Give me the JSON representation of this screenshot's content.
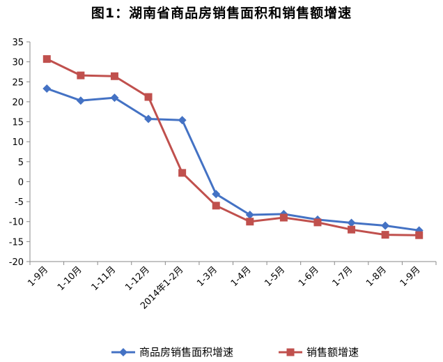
{
  "title": "图1：湖南省商品房销售面积和销售额增速",
  "chart_data": {
    "type": "line",
    "title": "图1：湖南省商品房销售面积和销售额增速",
    "categories": [
      "1-9月",
      "1-10月",
      "1-11月",
      "1-12月",
      "2014年1-2月",
      "1-3月",
      "1-4月",
      "1-5月",
      "1-6月",
      "1-7月",
      "1-8月",
      "1-9月"
    ],
    "ylim": [
      -20,
      35
    ],
    "yticks": [
      35,
      30,
      25,
      20,
      15,
      10,
      5,
      0,
      -5,
      -10,
      -15,
      -20
    ],
    "grid": false,
    "legend_position": "bottom",
    "series": [
      {
        "name": "商品房销售面积增速",
        "color": "#4472C4",
        "marker": "diamond",
        "values": [
          23.3,
          20.3,
          21.0,
          15.7,
          15.4,
          -3.1,
          -8.3,
          -8.1,
          -9.5,
          -10.3,
          -11.0,
          -12.2
        ]
      },
      {
        "name": "销售额增速",
        "color": "#C0504D",
        "marker": "square",
        "values": [
          30.7,
          26.6,
          26.4,
          21.2,
          2.2,
          -6.0,
          -10.0,
          -9.0,
          -10.2,
          -12.0,
          -13.3,
          -13.4
        ]
      }
    ]
  }
}
